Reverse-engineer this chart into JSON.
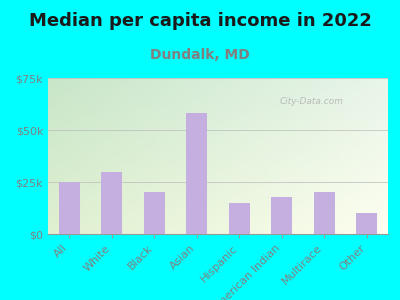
{
  "title": "Median per capita income in 2022",
  "subtitle": "Dundalk, MD",
  "categories": [
    "All",
    "White",
    "Black",
    "Asian",
    "Hispanic",
    "American Indian",
    "Multirace",
    "Other"
  ],
  "values": [
    25000,
    30000,
    20000,
    58000,
    15000,
    18000,
    20000,
    10000
  ],
  "bar_color": "#c5aee0",
  "background_outer": "#00ffff",
  "grad_top_left": "#c8e6c9",
  "grad_bottom_right": "#fefff0",
  "title_color": "#1a1a1a",
  "subtitle_color": "#808080",
  "tick_label_color": "#808080",
  "watermark": "City-Data.com",
  "ylim": [
    0,
    75000
  ],
  "yticks": [
    0,
    25000,
    50000,
    75000
  ],
  "ytick_labels": [
    "$0",
    "$25k",
    "$50k",
    "$75k"
  ],
  "title_fontsize": 13,
  "subtitle_fontsize": 10,
  "tick_fontsize": 8
}
